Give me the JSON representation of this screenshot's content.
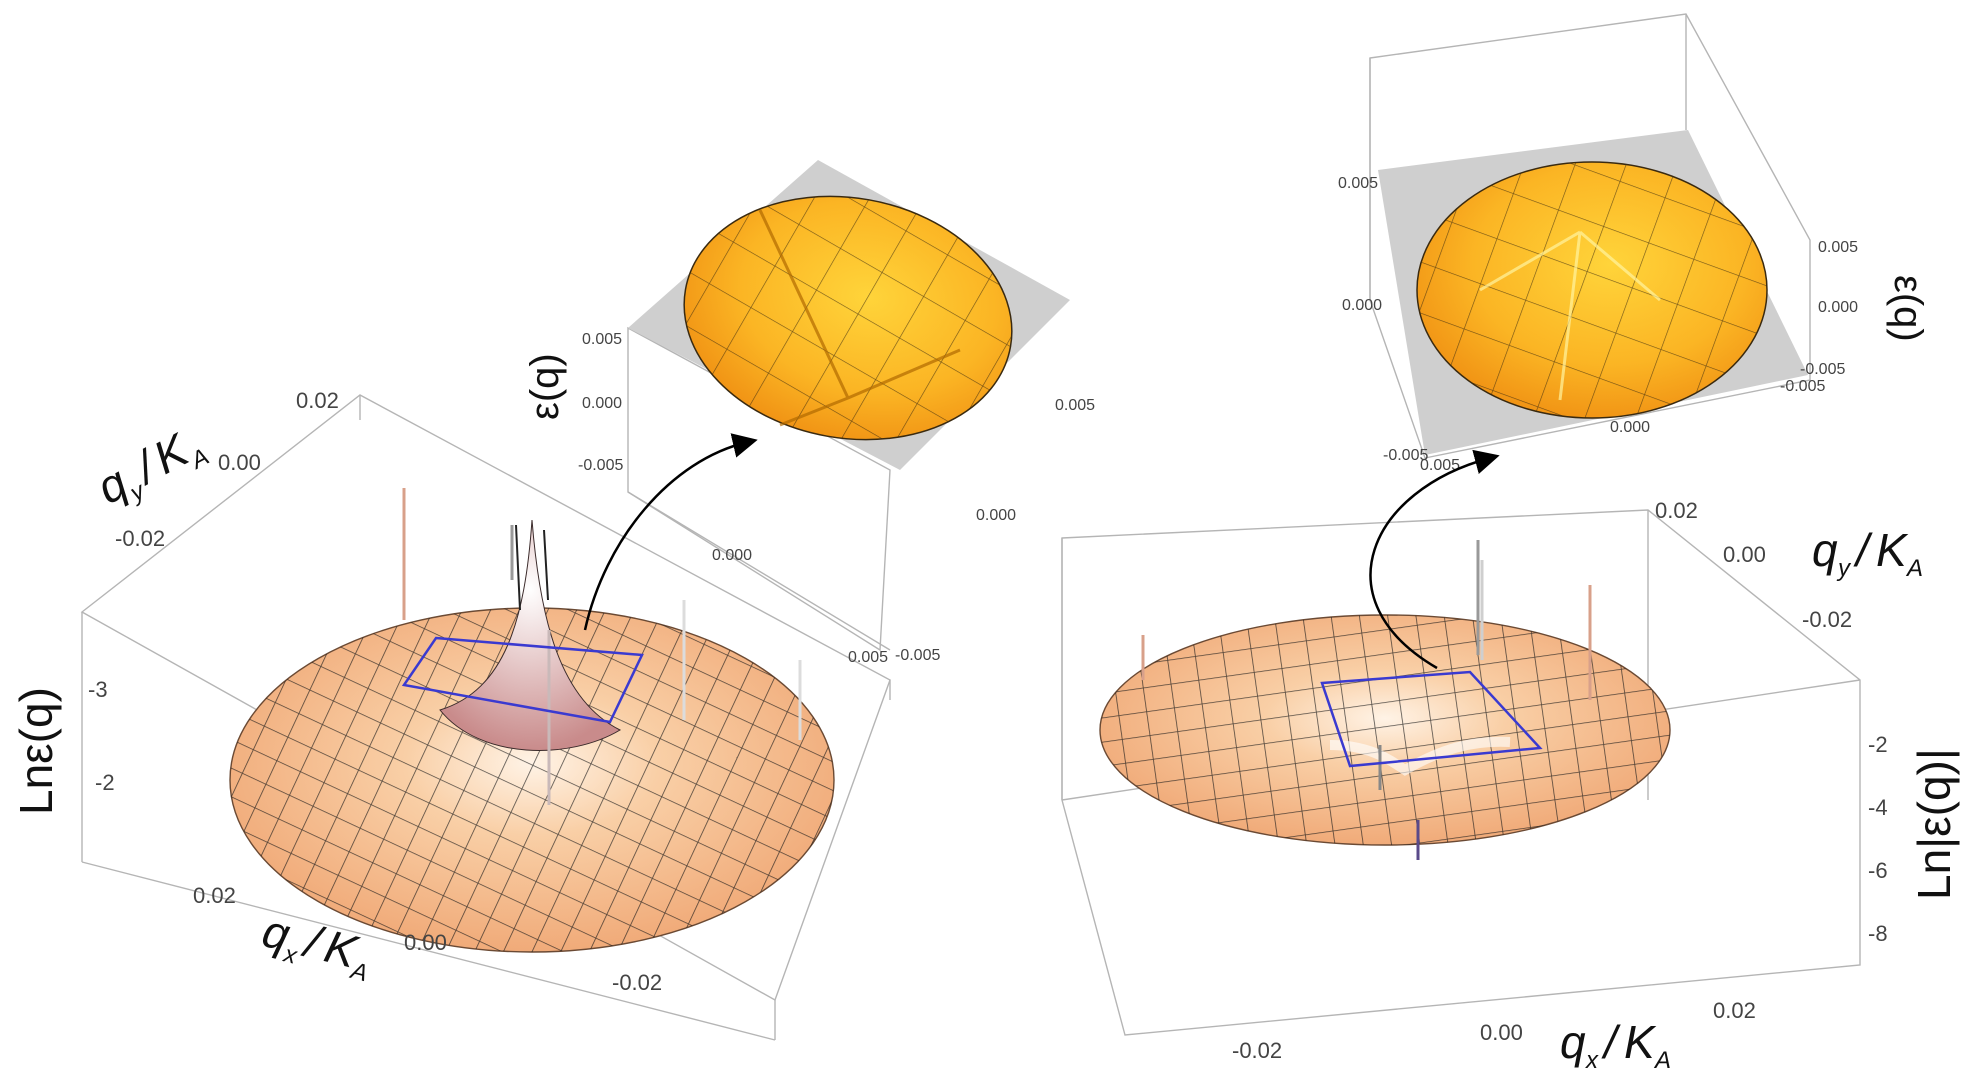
{
  "chart_data": [
    {
      "type": "surface3d",
      "panel": "left-main",
      "axis_labels": {
        "x": "q",
        "x_sub": "x",
        "x_den": "K",
        "x_den_sub": "A",
        "y": "q",
        "y_sub": "y",
        "y_den": "K",
        "y_den_sub": "A",
        "z": "Lnε(q)"
      },
      "x_ticks": [
        "0.02",
        "0.00",
        "-0.02"
      ],
      "y_ticks": [
        "0.02",
        "0.00",
        "-0.02"
      ],
      "z_ticks": [
        "-2",
        "-3"
      ],
      "features": "disk surface with sharp central peak and smaller spikes; blue square marks zoomed region",
      "surface_color": "#f4b27c"
    },
    {
      "type": "surface3d",
      "panel": "left-inset",
      "axis_labels": {
        "z": "ε(q)"
      },
      "x_ticks": [
        "0.005",
        "0.000",
        "-0.005"
      ],
      "y_ticks": [
        "0.005",
        "0.000"
      ],
      "z_ticks": [
        "0.005",
        "0.000",
        "-0.005"
      ],
      "surface_color": "#f7a21a"
    },
    {
      "type": "surface3d",
      "panel": "right-main",
      "axis_labels": {
        "x": "q",
        "x_sub": "x",
        "x_den": "K",
        "x_den_sub": "A",
        "y": "q",
        "y_sub": "y",
        "y_den": "K",
        "y_den_sub": "A",
        "z": "Ln|ε(q)|"
      },
      "x_ticks": [
        "-0.02",
        "0.00",
        "0.02"
      ],
      "y_ticks": [
        "0.02",
        "0.00",
        "-0.02"
      ],
      "z_ticks": [
        "-2",
        "-4",
        "-6",
        "-8"
      ],
      "surface_color": "#f4b27c"
    },
    {
      "type": "surface3d",
      "panel": "right-inset",
      "axis_labels": {
        "z": "ε(q)"
      },
      "x_ticks": [
        "-0.005",
        "0.000"
      ],
      "y_ticks": [
        "0.005",
        "0.000",
        "-0.005"
      ],
      "z_ticks": [
        "0.005",
        "0.000",
        "-0.005"
      ],
      "extra_ticks": [
        "0.005",
        "-0.005"
      ],
      "surface_color": "#f7a21a"
    }
  ],
  "labels": {
    "left_z": "Lnε(q)",
    "left_inset_z": "ε(q)",
    "right_z": "Ln|ε(q)|",
    "right_inset_z": "ε(q)",
    "q": "q",
    "K": "K",
    "sub_x": "x",
    "sub_y": "y",
    "sub_A": "A",
    "slash": "/",
    "lx0": "0.02",
    "lx1": "0.00",
    "lx2": "-0.02",
    "ly0": "0.02",
    "ly1": "0.00",
    "ly2": "-0.02",
    "lz0": "-2",
    "lz1": "-3",
    "lix0": "0.005",
    "lix1": "0.000",
    "lix2": "-0.005",
    "liy0": "0.005",
    "liy1": "0.000",
    "liz0": "0.005",
    "liz1": "0.000",
    "liz2": "-0.005",
    "rx0": "-0.02",
    "rx1": "0.00",
    "rx2": "0.02",
    "ry0": "0.02",
    "ry1": "0.00",
    "ry2": "-0.02",
    "rz0": "-2",
    "rz1": "-4",
    "rz2": "-6",
    "rz3": "-8",
    "rix0": "-0.005",
    "rix0b": "0.005",
    "rix1": "0.000",
    "riz0": "0.005",
    "riz1": "0.000",
    "riy0": "0.005",
    "riy1": "0.000",
    "riy2": "-0.005",
    "riy3": "-0.005"
  }
}
